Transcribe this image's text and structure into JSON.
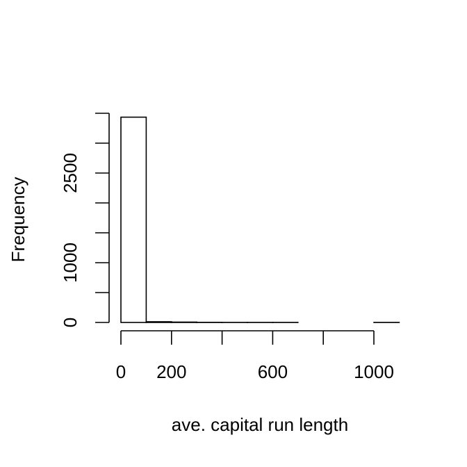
{
  "chart_data": {
    "type": "bar",
    "xlabel": "ave. capital run length",
    "ylabel": "Frequency",
    "bin_edges": [
      0,
      100,
      200,
      300,
      400,
      500,
      600,
      700,
      800,
      900,
      1000,
      1100
    ],
    "values": [
      3435,
      12,
      6,
      2,
      1,
      1,
      1,
      0,
      0,
      0,
      1
    ],
    "xlim": [
      0,
      1100
    ],
    "ylim": [
      0,
      3500
    ],
    "x_ticks": [
      0,
      200,
      400,
      600,
      800,
      1000
    ],
    "x_tick_labels": [
      "0",
      "200",
      "",
      "600",
      "",
      "1000"
    ],
    "y_ticks": [
      0,
      500,
      1000,
      1500,
      2000,
      2500,
      3000,
      3500
    ],
    "y_tick_labels": [
      "0",
      "",
      "1000",
      "",
      "",
      "2500",
      "",
      ""
    ],
    "grid": false
  }
}
